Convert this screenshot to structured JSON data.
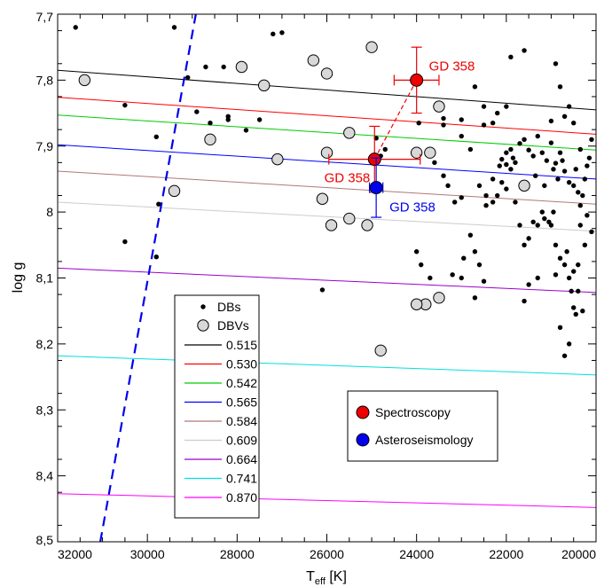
{
  "chart_data": {
    "type": "scatter",
    "xlabel": "T",
    "xlabel_sub": "eff",
    "xlabel_unit": " [K]",
    "ylabel": "log g",
    "xlim": [
      32000,
      20000
    ],
    "ylim": [
      7.7,
      8.5
    ],
    "x_reversed": true,
    "y_reversed": true,
    "x_ticks": [
      32000,
      30000,
      28000,
      26000,
      24000,
      22000,
      20000
    ],
    "x_tick_labels": [
      "32000",
      "30000",
      "28000",
      "26000",
      "24000",
      "22000",
      "20000"
    ],
    "y_ticks": [
      7.7,
      7.8,
      7.9,
      8.0,
      8.1,
      8.2,
      8.3,
      8.4,
      8.5
    ],
    "y_tick_labels": [
      "7,7",
      "7,8",
      "7,9",
      "8",
      "8,1",
      "8,2",
      "8,3",
      "8,4",
      "8,5"
    ],
    "legend_placement": "lower-left",
    "tracks": [
      {
        "name": "0.515",
        "color": "#000000",
        "y_at_32000": 7.785,
        "y_at_20000": 7.845
      },
      {
        "name": "0.530",
        "color": "#ff0000",
        "y_at_32000": 7.826,
        "y_at_20000": 7.882
      },
      {
        "name": "0.542",
        "color": "#00cc00",
        "y_at_32000": 7.853,
        "y_at_20000": 7.906
      },
      {
        "name": "0.565",
        "color": "#0000ff",
        "y_at_32000": 7.898,
        "y_at_20000": 7.95
      },
      {
        "name": "0.584",
        "color": "#b07878",
        "y_at_32000": 7.938,
        "y_at_20000": 7.988
      },
      {
        "name": "0.609",
        "color": "#cccccc",
        "y_at_32000": 7.985,
        "y_at_20000": 8.029
      },
      {
        "name": "0.664",
        "color": "#9900cc",
        "y_at_32000": 8.085,
        "y_at_20000": 8.122
      },
      {
        "name": "0.741",
        "color": "#00e0e0",
        "y_at_32000": 8.218,
        "y_at_20000": 8.247
      },
      {
        "name": "0.870",
        "color": "#ff00ff",
        "y_at_32000": 8.427,
        "y_at_20000": 8.448
      }
    ],
    "blue_edge": {
      "color": "#0000ee",
      "points": [
        [
          31050,
          8.5
        ],
        [
          28920,
          7.7
        ]
      ]
    },
    "dbs": {
      "name": "DBs",
      "points": [
        [
          31600,
          7.72
        ],
        [
          29400,
          7.72
        ],
        [
          29100,
          7.796
        ],
        [
          28900,
          7.848
        ],
        [
          28600,
          7.865
        ],
        [
          28700,
          7.78
        ],
        [
          28300,
          7.78
        ],
        [
          28200,
          7.855
        ],
        [
          28200,
          7.86
        ],
        [
          27800,
          7.876
        ],
        [
          27500,
          7.86
        ],
        [
          27200,
          7.73
        ],
        [
          27000,
          7.728
        ],
        [
          30500,
          7.838
        ],
        [
          30500,
          8.045
        ],
        [
          29800,
          7.886
        ],
        [
          29750,
          7.988
        ],
        [
          29800,
          8.068
        ],
        [
          24900,
          7.888
        ],
        [
          24700,
          7.905
        ],
        [
          23950,
          7.865
        ],
        [
          23500,
          7.845
        ],
        [
          23400,
          7.858
        ],
        [
          23400,
          7.868
        ],
        [
          23000,
          7.86
        ],
        [
          23000,
          7.885
        ],
        [
          22800,
          7.905
        ],
        [
          22500,
          7.868
        ],
        [
          22300,
          7.865
        ],
        [
          22200,
          7.85
        ],
        [
          22000,
          7.84
        ],
        [
          22100,
          7.92
        ],
        [
          22000,
          7.928
        ],
        [
          22150,
          7.93
        ],
        [
          21900,
          7.935
        ],
        [
          21850,
          7.918
        ],
        [
          21800,
          7.925
        ],
        [
          21700,
          7.896
        ],
        [
          21600,
          7.89
        ],
        [
          21500,
          7.906
        ],
        [
          21400,
          7.915
        ],
        [
          21300,
          7.885
        ],
        [
          21200,
          7.91
        ],
        [
          21100,
          7.922
        ],
        [
          21000,
          7.895
        ],
        [
          20950,
          7.935
        ],
        [
          20900,
          7.926
        ],
        [
          20850,
          7.95
        ],
        [
          20800,
          7.91
        ],
        [
          20750,
          7.922
        ],
        [
          20700,
          7.938
        ],
        [
          20600,
          7.955
        ],
        [
          20500,
          7.96
        ],
        [
          20450,
          7.935
        ],
        [
          20400,
          7.97
        ],
        [
          20300,
          7.975
        ],
        [
          20250,
          7.95
        ],
        [
          20200,
          7.93
        ],
        [
          20150,
          7.918
        ],
        [
          20100,
          7.89
        ],
        [
          20350,
          7.905
        ],
        [
          20600,
          7.84
        ],
        [
          20700,
          7.855
        ],
        [
          20800,
          7.81
        ],
        [
          20900,
          7.775
        ],
        [
          21600,
          7.755
        ],
        [
          21900,
          7.765
        ],
        [
          22500,
          7.84
        ],
        [
          22700,
          7.81
        ],
        [
          21000,
          7.862
        ],
        [
          20500,
          7.865
        ],
        [
          23000,
          7.978
        ],
        [
          23150,
          7.985
        ],
        [
          22800,
          8.035
        ],
        [
          22700,
          8.06
        ],
        [
          22600,
          8.08
        ],
        [
          22500,
          8.105
        ],
        [
          22450,
          7.99
        ],
        [
          22300,
          7.985
        ],
        [
          22200,
          7.975
        ],
        [
          21800,
          7.985
        ],
        [
          21700,
          8.02
        ],
        [
          21600,
          8.05
        ],
        [
          21500,
          8.04
        ],
        [
          21400,
          8.015
        ],
        [
          21300,
          8.02
        ],
        [
          21200,
          8.0
        ],
        [
          21150,
          8.01
        ],
        [
          21050,
          8.015
        ],
        [
          21000,
          8.02
        ],
        [
          20950,
          8.0
        ],
        [
          20900,
          8.05
        ],
        [
          20800,
          8.07
        ],
        [
          20700,
          8.08
        ],
        [
          20650,
          8.06
        ],
        [
          20600,
          8.1
        ],
        [
          20550,
          8.12
        ],
        [
          20500,
          8.145
        ],
        [
          20450,
          8.155
        ],
        [
          20400,
          8.12
        ],
        [
          20300,
          8.15
        ],
        [
          20250,
          8.05
        ],
        [
          20350,
          8.02
        ],
        [
          20600,
          8.2
        ],
        [
          20700,
          8.218
        ],
        [
          20800,
          8.175
        ],
        [
          20900,
          8.095
        ],
        [
          21300,
          8.1
        ],
        [
          21500,
          8.11
        ],
        [
          21600,
          8.135
        ],
        [
          23200,
          8.095
        ],
        [
          23000,
          8.1
        ],
        [
          22950,
          8.07
        ],
        [
          22700,
          8.13
        ],
        [
          22600,
          7.96
        ],
        [
          22450,
          7.975
        ],
        [
          22300,
          7.95
        ],
        [
          22100,
          7.955
        ],
        [
          22000,
          7.965
        ],
        [
          23600,
          7.925
        ],
        [
          23400,
          7.945
        ],
        [
          23300,
          7.96
        ],
        [
          23700,
          8.1
        ],
        [
          24000,
          8.06
        ],
        [
          23900,
          8.08
        ],
        [
          26100,
          8.118
        ],
        [
          24800,
          7.915
        ],
        [
          21150,
          7.96
        ],
        [
          21350,
          7.945
        ],
        [
          20350,
          7.99
        ],
        [
          20200,
          8.005
        ],
        [
          20100,
          8.03
        ],
        [
          21900,
          7.905
        ],
        [
          22000,
          7.91
        ],
        [
          20400,
          8.08
        ],
        [
          20500,
          8.09
        ]
      ]
    },
    "dbvs": {
      "name": "DBVs",
      "points": [
        [
          31400,
          7.8
        ],
        [
          27400,
          7.808
        ],
        [
          27900,
          7.78
        ],
        [
          28600,
          7.89
        ],
        [
          29400,
          7.968
        ],
        [
          27100,
          7.92
        ],
        [
          26300,
          7.77
        ],
        [
          26000,
          7.79
        ],
        [
          25000,
          7.75
        ],
        [
          26000,
          7.91
        ],
        [
          26100,
          7.98
        ],
        [
          25900,
          8.02
        ],
        [
          25500,
          8.01
        ],
        [
          25100,
          8.02
        ],
        [
          25500,
          7.88
        ],
        [
          23500,
          7.84
        ],
        [
          23700,
          7.91
        ],
        [
          24000,
          7.91
        ],
        [
          21600,
          7.96
        ],
        [
          23500,
          8.13
        ],
        [
          23800,
          8.14
        ],
        [
          24000,
          8.14
        ],
        [
          24800,
          8.21
        ]
      ]
    },
    "spectroscopy": {
      "name": "Spectroscopy",
      "color": "#ee0000",
      "points": [
        {
          "label": "GD 358",
          "x": 24000,
          "y": 7.8,
          "xerr": 500,
          "yerr": 0.05
        },
        {
          "label": "GD 358",
          "x": 24937,
          "y": 7.92,
          "xerr": 1018,
          "yerr": 0.05
        }
      ]
    },
    "asteroseismology": {
      "name": "Asteroseismology",
      "color": "#0000ee",
      "points": [
        {
          "label": "GD 358",
          "x": 24900,
          "y": 7.963,
          "xerr": 150,
          "yerr": 0.045
        }
      ]
    }
  }
}
